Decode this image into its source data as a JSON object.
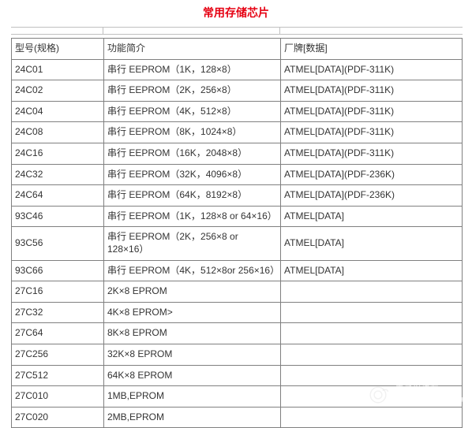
{
  "title": "常用存储芯片",
  "title_color": "#e60012",
  "columns": [
    "型号(规格)",
    "功能简介",
    "厂牌[数据]"
  ],
  "rows": [
    [
      "24C01",
      "串行 EEPROM（1K，128×8）",
      "ATMEL[DATA](PDF-311K)"
    ],
    [
      "24C02",
      "串行 EEPROM（2K，256×8）",
      "ATMEL[DATA](PDF-311K)"
    ],
    [
      "24C04",
      "串行 EEPROM（4K，512×8）",
      "ATMEL[DATA](PDF-311K)"
    ],
    [
      "24C08",
      "串行 EEPROM（8K，1024×8）",
      "ATMEL[DATA](PDF-311K)"
    ],
    [
      "24C16",
      "串行 EEPROM（16K，2048×8）",
      "ATMEL[DATA](PDF-311K)"
    ],
    [
      "24C32",
      "串行 EEPROM（32K，4096×8）",
      "ATMEL[DATA](PDF-236K)"
    ],
    [
      "24C64",
      "串行 EEPROM（64K，8192×8）",
      "ATMEL[DATA](PDF-236K)"
    ],
    [
      "93C46",
      "串行 EEPROM（1K，128×8 or 64×16）",
      "ATMEL[DATA]"
    ],
    [
      "93C56",
      "串行 EEPROM（2K，256×8 or 128×16）",
      "ATMEL[DATA]"
    ],
    [
      "93C66",
      "串行 EEPROM（4K，512×8or 256×16）",
      "ATMEL[DATA]"
    ],
    [
      "27C16",
      "2K×8 EPROM",
      ""
    ],
    [
      "27C32",
      "4K×8 EPROM>",
      ""
    ],
    [
      "27C64",
      "8K×8 EPROM",
      ""
    ],
    [
      "27C256",
      "32K×8 EPROM",
      ""
    ],
    [
      "27C512",
      "64K×8 EPROM",
      ""
    ],
    [
      "27C010",
      "1MB,EPROM",
      ""
    ],
    [
      "27C020",
      "2MB,EPROM",
      ""
    ]
  ],
  "watermark": {
    "line1": "电子发烧友",
    "line2": "www.elecfans.com"
  }
}
